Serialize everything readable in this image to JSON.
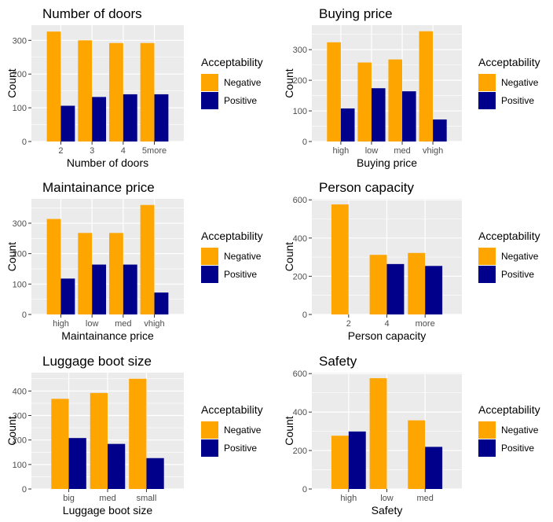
{
  "legend": {
    "title": "Acceptability",
    "items": [
      {
        "label": "Negative",
        "color": "#FFA500"
      },
      {
        "label": "Positive",
        "color": "#00008B"
      }
    ]
  },
  "chart_data": [
    {
      "type": "bar",
      "title": "Number of doors",
      "xlabel": "Number of doors",
      "ylabel": "Count",
      "categories": [
        "2",
        "3",
        "4",
        "5more"
      ],
      "series": [
        {
          "name": "Negative",
          "values": [
            326,
            300,
            292,
            292
          ]
        },
        {
          "name": "Positive",
          "values": [
            106,
            132,
            140,
            140
          ]
        }
      ],
      "ylim": [
        0,
        345
      ],
      "yticks": [
        0,
        100,
        200,
        300
      ],
      "grid": true,
      "legend_position": "right"
    },
    {
      "type": "bar",
      "title": "Buying price",
      "xlabel": "Buying price",
      "ylabel": "Count",
      "categories": [
        "high",
        "low",
        "med",
        "vhigh"
      ],
      "series": [
        {
          "name": "Negative",
          "values": [
            324,
            258,
            268,
            360
          ]
        },
        {
          "name": "Positive",
          "values": [
            108,
            174,
            164,
            72
          ]
        }
      ],
      "ylim": [
        0,
        380
      ],
      "yticks": [
        0,
        100,
        200,
        300
      ],
      "grid": true,
      "legend_position": "right"
    },
    {
      "type": "bar",
      "title": "Maintainance price",
      "xlabel": "Maintainance price",
      "ylabel": "Count",
      "categories": [
        "high",
        "low",
        "med",
        "vhigh"
      ],
      "series": [
        {
          "name": "Negative",
          "values": [
            314,
            268,
            268,
            360
          ]
        },
        {
          "name": "Positive",
          "values": [
            118,
            164,
            164,
            72
          ]
        }
      ],
      "ylim": [
        0,
        380
      ],
      "yticks": [
        0,
        100,
        200,
        300
      ],
      "grid": true,
      "legend_position": "right"
    },
    {
      "type": "bar",
      "title": "Person capacity",
      "xlabel": "Person capacity",
      "ylabel": "Count",
      "categories": [
        "2",
        "4",
        "more"
      ],
      "series": [
        {
          "name": "Negative",
          "values": [
            576,
            312,
            322
          ]
        },
        {
          "name": "Positive",
          "values": [
            0,
            264,
            254
          ]
        }
      ],
      "ylim": [
        0,
        605
      ],
      "yticks": [
        0,
        200,
        400,
        600
      ],
      "grid": true,
      "legend_position": "right"
    },
    {
      "type": "bar",
      "title": "Luggage boot size",
      "xlabel": "Luggage boot size",
      "ylabel": "Count",
      "categories": [
        "big",
        "med",
        "small"
      ],
      "series": [
        {
          "name": "Negative",
          "values": [
            368,
            392,
            450
          ]
        },
        {
          "name": "Positive",
          "values": [
            208,
            184,
            126
          ]
        }
      ],
      "ylim": [
        0,
        475
      ],
      "yticks": [
        0,
        100,
        200,
        300,
        400
      ],
      "grid": true,
      "legend_position": "right"
    },
    {
      "type": "bar",
      "title": "Safety",
      "xlabel": "Safety",
      "ylabel": "Count",
      "categories": [
        "high",
        "low",
        "med"
      ],
      "series": [
        {
          "name": "Negative",
          "values": [
            277,
            576,
            357
          ]
        },
        {
          "name": "Positive",
          "values": [
            299,
            0,
            219
          ]
        }
      ],
      "ylim": [
        0,
        605
      ],
      "yticks": [
        0,
        200,
        400,
        600
      ],
      "grid": true,
      "legend_position": "right"
    }
  ]
}
